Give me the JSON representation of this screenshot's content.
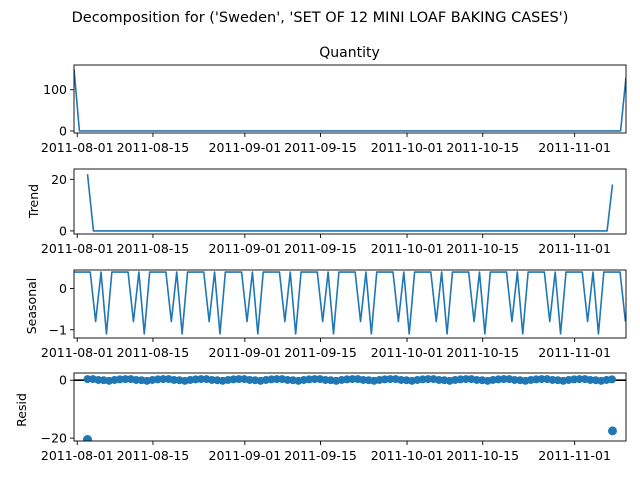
{
  "figure_title": "Decomposition for ('Sweden', 'SET OF 12 MINI LOAF BAKING CASES')",
  "colors": {
    "line": "#1f77b4",
    "axis": "#000000",
    "background": "#ffffff"
  },
  "chart_data": [
    {
      "type": "line",
      "panel": "observed",
      "title": "Quantity",
      "ylabel": "",
      "ylim": [
        -5,
        160
      ],
      "yticks": [
        0,
        100
      ],
      "xticks": [
        3,
        17,
        34,
        48,
        64,
        78,
        95
      ],
      "xtick_labels": [
        "2011-08-01",
        "2011-08-15",
        "2011-09-01",
        "2011-09-15",
        "2011-10-01",
        "2011-10-15",
        "2011-11-01"
      ],
      "x_range": [
        2.4,
        104.5
      ],
      "x": [
        2.4,
        3.4,
        103.5,
        104.5
      ],
      "values": [
        150,
        0,
        0,
        130
      ]
    },
    {
      "type": "line",
      "panel": "trend",
      "title": "",
      "ylabel": "Trend",
      "ylim": [
        -1.2,
        24
      ],
      "yticks": [
        0,
        20
      ],
      "xticks": [
        3,
        17,
        34,
        48,
        64,
        78,
        95
      ],
      "xtick_labels": [
        "2011-08-01",
        "2011-08-15",
        "2011-09-01",
        "2011-09-15",
        "2011-10-01",
        "2011-10-15",
        "2011-11-01"
      ],
      "x_range": [
        2.4,
        104.5
      ],
      "x": [
        4.9,
        6.0,
        101.0,
        102.0
      ],
      "values": [
        22,
        0,
        0,
        18
      ]
    },
    {
      "type": "line",
      "panel": "seasonal",
      "title": "",
      "ylabel": "Seasonal",
      "ylim": [
        -1.2,
        0.45
      ],
      "yticks": [
        -1,
        0
      ],
      "xticks": [
        3,
        17,
        34,
        48,
        64,
        78,
        95
      ],
      "xtick_labels": [
        "2011-08-01",
        "2011-08-15",
        "2011-09-01",
        "2011-09-15",
        "2011-10-01",
        "2011-10-15",
        "2011-11-01"
      ],
      "x_range": [
        2.4,
        104.5
      ],
      "period_pattern": [
        0.4,
        0.4,
        0.4,
        0.4,
        -0.8,
        0.4,
        -1.1
      ],
      "period_start_x": 2.4,
      "num_points": 103
    },
    {
      "type": "scatter",
      "panel": "resid",
      "title": "",
      "ylabel": "Resid",
      "ylim": [
        -21,
        2.5
      ],
      "yticks": [
        -20,
        0
      ],
      "zero_line": true,
      "xticks": [
        3,
        17,
        34,
        48,
        64,
        78,
        95
      ],
      "xtick_labels": [
        "2011-08-01",
        "2011-08-15",
        "2011-09-01",
        "2011-09-15",
        "2011-10-01",
        "2011-10-15",
        "2011-11-01"
      ],
      "x_range": [
        2.4,
        104.5
      ],
      "outliers": [
        {
          "x": 4.9,
          "y": -20.5
        },
        {
          "x": 102.0,
          "y": -17.5
        }
      ],
      "residual_pattern": [
        0.4,
        0.4,
        0.1,
        0.0,
        -0.2,
        0.1,
        0.3
      ]
    }
  ]
}
